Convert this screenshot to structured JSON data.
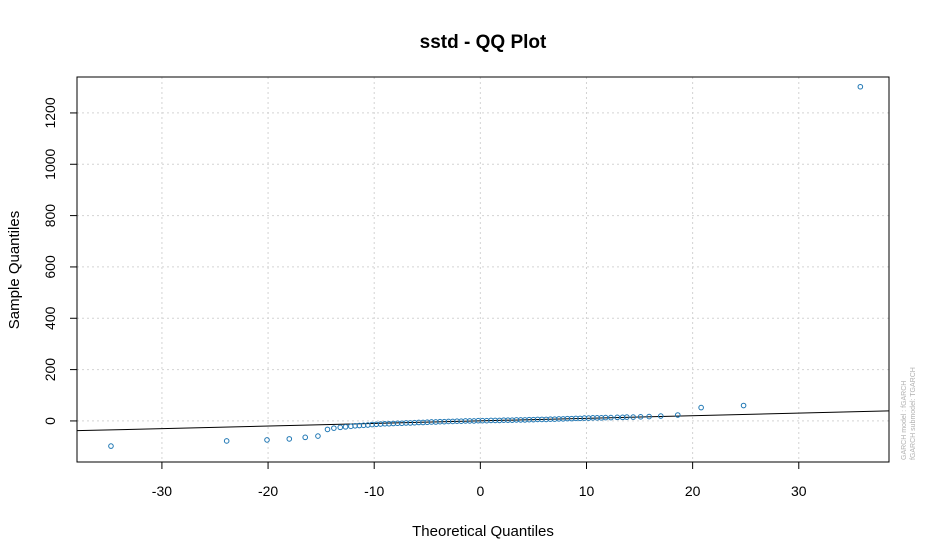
{
  "chart_data": {
    "type": "scatter",
    "title": "sstd - QQ Plot",
    "xlabel": "Theoretical Quantiles",
    "ylabel": "Sample Quantiles",
    "xlim": [
      -38,
      38.5
    ],
    "ylim": [
      -160,
      1340
    ],
    "x_ticks": [
      -30,
      -20,
      -10,
      0,
      10,
      20,
      30
    ],
    "y_ticks": [
      0,
      200,
      400,
      600,
      800,
      1000,
      1200
    ],
    "grid": true,
    "point_color": "#1f77b4",
    "reference_line": {
      "x": [
        -38,
        38.5
      ],
      "y": [
        -38,
        39
      ]
    },
    "side_notes": [
      "GARCH model : fGARCH",
      "fGARCH submodel: TGARCH"
    ],
    "points": {
      "x": [
        -34.8,
        -23.9,
        -20.1,
        -18.0,
        -16.5,
        -15.3,
        -14.4,
        -13.8,
        -13.2,
        -12.7,
        -12.2,
        -11.8,
        -11.4,
        -11.0,
        -10.6,
        -10.2,
        -9.8,
        -9.4,
        -9.0,
        -8.6,
        -8.2,
        -7.8,
        -7.4,
        -7.0,
        -6.6,
        -6.2,
        -5.8,
        -5.4,
        -5.0,
        -4.6,
        -4.2,
        -3.8,
        -3.4,
        -3.0,
        -2.6,
        -2.2,
        -1.8,
        -1.4,
        -1.0,
        -0.6,
        -0.2,
        0.2,
        0.6,
        1.0,
        1.4,
        1.8,
        2.2,
        2.6,
        3.0,
        3.4,
        3.8,
        4.2,
        4.6,
        5.0,
        5.4,
        5.8,
        6.2,
        6.6,
        7.0,
        7.4,
        7.8,
        8.2,
        8.6,
        9.0,
        9.4,
        9.8,
        10.2,
        10.6,
        11.0,
        11.4,
        11.8,
        12.3,
        12.9,
        13.4,
        13.8,
        14.4,
        15.1,
        15.9,
        17.0,
        18.6,
        20.8,
        24.8,
        35.8
      ],
      "y": [
        -98,
        -78,
        -74,
        -70,
        -64,
        -59,
        -33,
        -28,
        -25,
        -23,
        -21,
        -19,
        -18,
        -17,
        -16,
        -14,
        -13,
        -12,
        -11,
        -11,
        -10,
        -9,
        -9,
        -8,
        -8,
        -7,
        -6,
        -6,
        -5,
        -4,
        -4,
        -3,
        -3,
        -2,
        -2,
        -1,
        -1,
        0,
        0,
        0,
        1,
        1,
        1,
        2,
        2,
        2,
        3,
        3,
        3,
        4,
        4,
        4,
        5,
        5,
        6,
        6,
        6,
        7,
        7,
        8,
        8,
        9,
        9,
        10,
        10,
        11,
        11,
        12,
        12,
        12,
        13,
        13,
        14,
        14,
        15,
        15,
        16,
        17,
        19,
        23,
        52,
        60,
        1302
      ]
    }
  }
}
